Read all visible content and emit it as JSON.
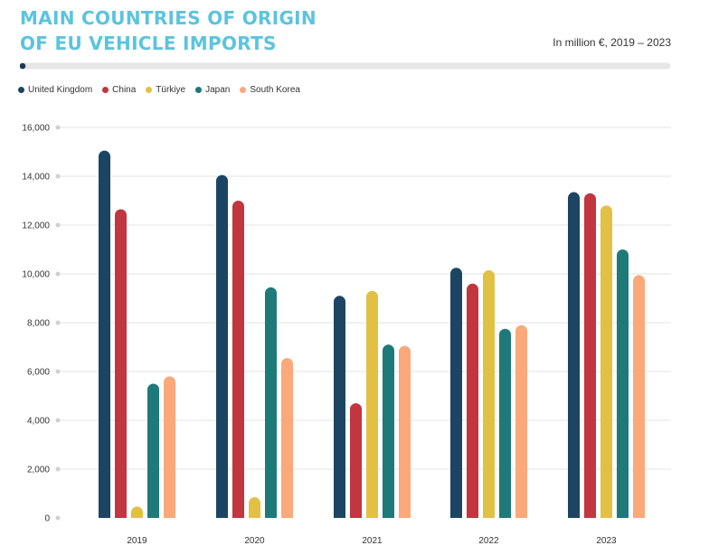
{
  "title_line1": "MAIN COUNTRIES OF ORIGIN",
  "title_line2": "OF EU VEHICLE IMPORTS",
  "subtitle": "In million €, 2019 – 2023",
  "colors": {
    "accent": "#5bc4de",
    "progress_track": "#e6e6e6",
    "progress_dot": "#1c3a4f",
    "gridline": "#e3e3e3"
  },
  "chart_data": {
    "type": "bar",
    "title": "MAIN COUNTRIES OF ORIGIN OF EU VEHICLE IMPORTS",
    "subtitle": "In million €, 2019 – 2023",
    "categories": [
      "2019",
      "2020",
      "2021",
      "2022",
      "2023"
    ],
    "series": [
      {
        "name": "United Kingdom",
        "color": "#1c4563",
        "values": [
          15050,
          14050,
          9100,
          10250,
          13350
        ]
      },
      {
        "name": "China",
        "color": "#c1363f",
        "values": [
          12650,
          13000,
          4700,
          9600,
          13300
        ]
      },
      {
        "name": "Türkiye",
        "color": "#e2c044",
        "values": [
          450,
          850,
          9300,
          10150,
          12800
        ]
      },
      {
        "name": "Japan",
        "color": "#1d7a79",
        "values": [
          5500,
          9450,
          7100,
          7750,
          11000
        ]
      },
      {
        "name": "South Korea",
        "color": "#fba87a",
        "values": [
          5800,
          6550,
          7050,
          7900,
          9950
        ]
      }
    ],
    "yticks": [
      "0",
      "2,000",
      "4,000",
      "6,000",
      "8,000",
      "10,000",
      "12,000",
      "14,000",
      "16,000"
    ],
    "ylim": [
      0,
      16000
    ],
    "xlabel": "",
    "ylabel": "",
    "grid": true,
    "legend_position": "top-left"
  }
}
